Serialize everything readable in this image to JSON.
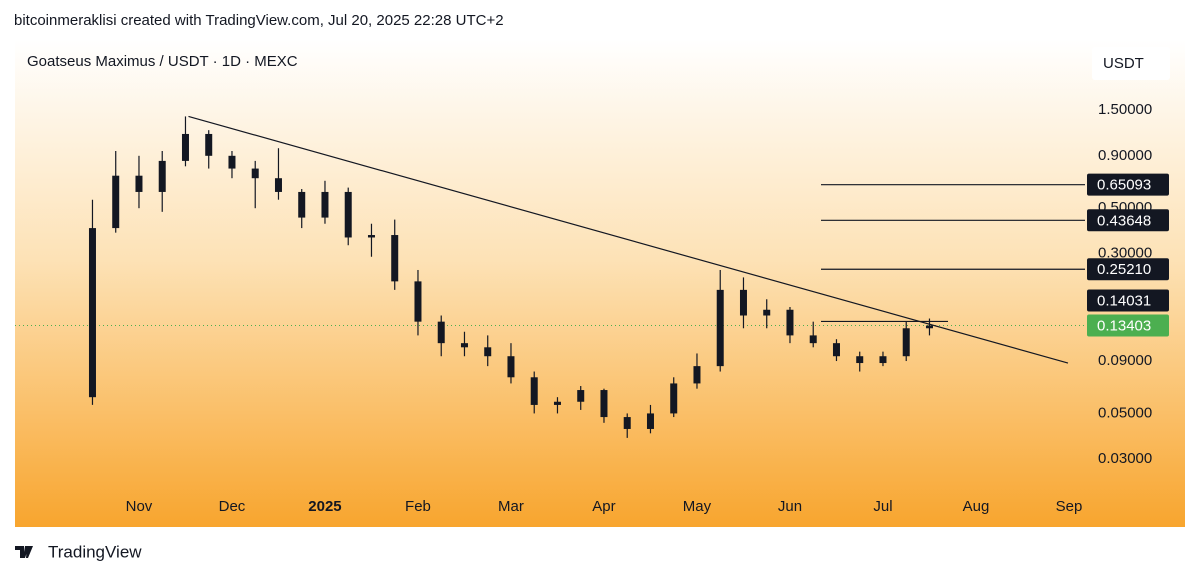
{
  "header": "bitcoinmeraklisi created with TradingView.com, Jul 20, 2025 22:28 UTC+2",
  "footer": {
    "brand": "TradingView"
  },
  "chart_data": {
    "type": "candlestick",
    "title": "Goatseus Maximus / USDT · 1D · MEXC",
    "y_unit": "USDT",
    "log_scale": true,
    "grid": false,
    "color": "#131722",
    "categories": [
      null,
      null,
      null,
      "Nov",
      null,
      null,
      null,
      "Dec",
      null,
      null,
      null,
      "2025",
      null,
      null,
      null,
      "Feb",
      null,
      null,
      null,
      "Mar",
      null,
      null,
      null,
      "Apr",
      null,
      null,
      null,
      "May",
      null,
      null,
      null,
      "Jun",
      null,
      null,
      null,
      "Jul",
      null,
      null,
      null,
      "Aug",
      null,
      null,
      null,
      "Sep"
    ],
    "open": [
      null,
      0.06,
      0.4,
      0.72,
      0.6,
      0.85,
      1.15,
      0.9,
      0.78,
      0.7,
      0.6,
      0.45,
      0.6,
      0.36,
      0.37,
      0.22,
      0.14,
      0.11,
      0.105,
      0.095,
      0.075,
      0.055,
      0.057,
      0.065,
      0.048,
      0.042,
      0.05,
      0.07,
      0.085,
      0.2,
      0.15,
      0.16,
      0.12,
      0.11,
      0.095,
      0.088,
      0.095,
      0.13,
      null,
      null,
      null,
      null,
      null,
      null
    ],
    "high": [
      null,
      0.55,
      0.95,
      0.9,
      0.95,
      1.4,
      1.2,
      0.95,
      0.85,
      0.98,
      0.62,
      0.68,
      0.63,
      0.42,
      0.44,
      0.25,
      0.15,
      0.125,
      0.12,
      0.11,
      0.08,
      0.06,
      0.068,
      0.066,
      0.05,
      0.055,
      0.075,
      0.098,
      0.25,
      0.23,
      0.18,
      0.165,
      0.14,
      0.115,
      0.1,
      0.1,
      0.14,
      0.145,
      null,
      null,
      null,
      null,
      null,
      null
    ],
    "low": [
      null,
      0.055,
      0.38,
      0.5,
      0.48,
      0.8,
      0.78,
      0.7,
      0.5,
      0.55,
      0.4,
      0.42,
      0.33,
      0.29,
      0.2,
      0.12,
      0.095,
      0.095,
      0.085,
      0.07,
      0.05,
      0.05,
      0.052,
      0.045,
      0.038,
      0.04,
      0.048,
      0.066,
      0.08,
      0.13,
      0.13,
      0.11,
      0.105,
      0.09,
      0.08,
      0.085,
      0.09,
      0.12,
      null,
      null,
      null,
      null,
      null,
      null
    ],
    "close": [
      null,
      0.4,
      0.72,
      0.6,
      0.85,
      1.15,
      0.9,
      0.78,
      0.7,
      0.6,
      0.45,
      0.6,
      0.36,
      0.37,
      0.22,
      0.14,
      0.11,
      0.105,
      0.095,
      0.075,
      0.055,
      0.057,
      0.065,
      0.048,
      0.042,
      0.05,
      0.07,
      0.085,
      0.2,
      0.15,
      0.16,
      0.12,
      0.11,
      0.095,
      0.088,
      0.095,
      0.13,
      0.134,
      null,
      null,
      null,
      null,
      null,
      null
    ],
    "ylim": [
      0.0143,
      3.3
    ],
    "yticks": [
      {
        "value": 1.5,
        "label": "1.50000"
      },
      {
        "value": 0.9,
        "label": "0.90000"
      },
      {
        "value": 0.5,
        "label": "0.50000"
      },
      {
        "value": 0.3,
        "label": "0.30000"
      },
      {
        "value": 0.09,
        "label": "0.09000"
      },
      {
        "value": 0.05,
        "label": "0.05000"
      },
      {
        "value": 0.03,
        "label": "0.03000"
      }
    ],
    "price_lines": [
      0.65093,
      0.43648,
      {
        "value": 0.2521,
        "label": "0.25210"
      },
      0.14031
    ],
    "last_price": {
      "value": 0.13403,
      "color": "#4caf50"
    },
    "trendline": [
      1.4,
      0.088
    ]
  }
}
